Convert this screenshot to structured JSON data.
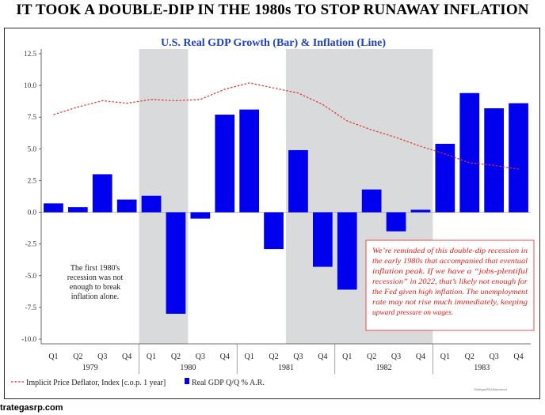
{
  "headline": "IT TOOK A DOUBLE-DIP IN THE 1980s TO STOP RUNAWAY INFLATION",
  "footer_url": "trategasrp.com",
  "source_note": "Strategas/BEA/Macrobond",
  "colors": {
    "bar": "#0000ee",
    "line": "#e0302a",
    "recession_shade": "#d8dadc",
    "title": "#1f3fbf",
    "annotation_red": "#e8201b",
    "annotation_box": "#e8201b"
  },
  "chart_data": {
    "type": "bar",
    "title": "U.S. Real GDP Growth (Bar) & Inflation (Line)",
    "xlabel": "",
    "ylabel": "",
    "ylim": [
      -10.0,
      12.5
    ],
    "yticks": [
      "12.5",
      "10.0",
      "7.5",
      "5.0",
      "2.5",
      "0.0",
      "-2.5",
      "-5.0",
      "-7.5",
      "-10.0"
    ],
    "ytick_values": [
      12.5,
      10.0,
      7.5,
      5.0,
      2.5,
      0.0,
      -2.5,
      -5.0,
      -7.5,
      -10.0
    ],
    "categories": [
      "Q1",
      "Q2",
      "Q3",
      "Q4",
      "Q1",
      "Q2",
      "Q3",
      "Q4",
      "Q1",
      "Q2",
      "Q3",
      "Q4",
      "Q1",
      "Q2",
      "Q3",
      "Q4",
      "Q1",
      "Q2",
      "Q3",
      "Q4"
    ],
    "years": [
      "1979",
      "1980",
      "1981",
      "1982",
      "1983"
    ],
    "grid": false,
    "legend_position": "bottom-left",
    "series": [
      {
        "name": "Real GDP Q/Q % A.R.",
        "type": "bar",
        "values": [
          0.7,
          0.4,
          3.0,
          1.0,
          1.3,
          -8.0,
          -0.5,
          7.7,
          8.1,
          -2.9,
          4.9,
          -4.3,
          -6.1,
          1.8,
          -1.5,
          0.2,
          5.4,
          9.4,
          8.2,
          8.6
        ]
      },
      {
        "name": "Implicit Price Deflator, Index [c.o.p. 1 year]",
        "type": "line",
        "values": [
          7.7,
          8.3,
          8.8,
          8.6,
          8.9,
          8.8,
          8.9,
          9.7,
          10.2,
          9.8,
          9.4,
          8.5,
          7.2,
          6.5,
          5.9,
          5.2,
          4.6,
          3.9,
          3.7,
          3.4
        ]
      }
    ],
    "recessions": [
      {
        "start_index": 4,
        "end_index": 5
      },
      {
        "start_index": 10,
        "end_index": 15
      }
    ],
    "annotations": {
      "left_note": [
        "The first 1980's",
        "recession was not",
        "enough to break",
        "inflation alone."
      ],
      "right_note": [
        "We’re reminded of this double-dip recession in",
        "the early 1980s that accompanied that eventual",
        "inflation peak. If we have a “jobs-plentiful",
        "recession” in 2022, that’s likely not enough for",
        "the Fed given high inflation. The unemployment",
        "rate may not rise much immediately, keeping",
        "upward pressure on wages."
      ]
    }
  }
}
